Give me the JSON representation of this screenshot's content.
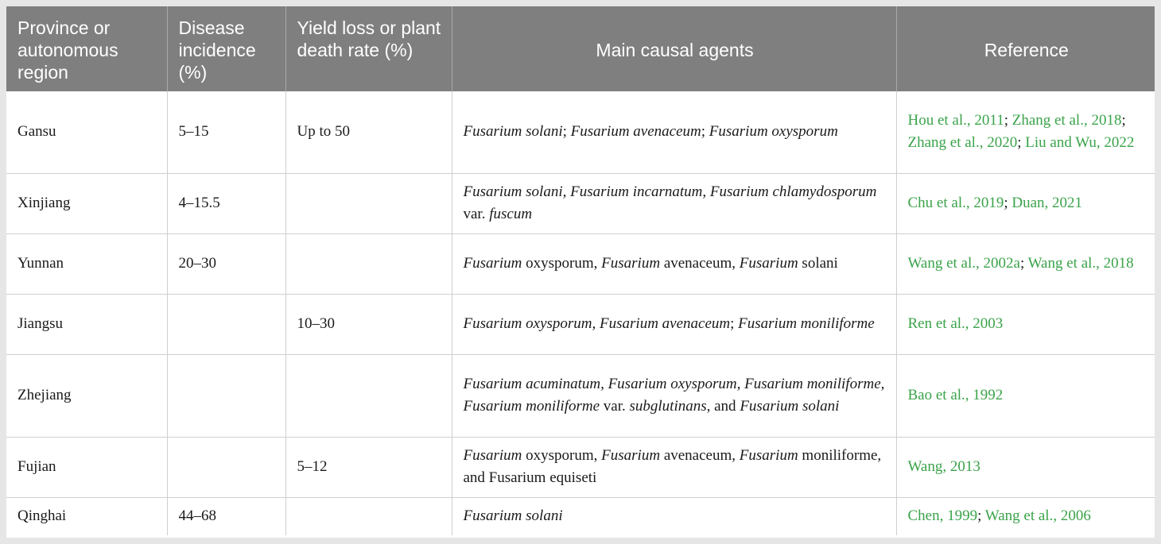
{
  "headers": [
    "Province or autonomous region",
    "Disease incidence (%)",
    "Yield loss or plant death rate (%)",
    "Main causal agents",
    "Reference"
  ],
  "rows": [
    {
      "province": "Gansu",
      "incidence": "5–15",
      "yield_loss": "Up to 50",
      "agents": [
        {
          "t": "Fusarium solani",
          "i": true
        },
        {
          "t": "; ",
          "i": false
        },
        {
          "t": "Fusarium avenaceum",
          "i": true
        },
        {
          "t": "; ",
          "i": false
        },
        {
          "t": "Fusarium oxysporum",
          "i": true
        }
      ],
      "refs": [
        "Hou et al., 2011",
        "Zhang et al., 2018",
        "Zhang et al., 2020",
        "Liu and Wu, 2022"
      ]
    },
    {
      "province": "Xinjiang",
      "incidence": "4–15.5",
      "yield_loss": "",
      "agents": [
        {
          "t": "Fusarium solani, Fusarium incarnatum, Fusarium chlamydosporum",
          "i": true
        },
        {
          "t": " var. ",
          "i": false
        },
        {
          "t": "fuscum",
          "i": true
        }
      ],
      "refs": [
        "Chu et al., 2019",
        "Duan, 2021"
      ]
    },
    {
      "province": "Yunnan",
      "incidence": "20–30",
      "yield_loss": "",
      "agents": [
        {
          "t": "Fusarium",
          "i": true
        },
        {
          "t": " oxysporum, ",
          "i": false
        },
        {
          "t": "Fusarium",
          "i": true
        },
        {
          "t": " avenaceum, ",
          "i": false
        },
        {
          "t": "Fusarium",
          "i": true
        },
        {
          "t": " solani",
          "i": false
        }
      ],
      "refs": [
        "Wang et al., 2002a",
        "Wang et al., 2018"
      ]
    },
    {
      "province": "Jiangsu",
      "incidence": "",
      "yield_loss": "10–30",
      "agents": [
        {
          "t": "Fusarium oxysporum, Fusarium avenaceum",
          "i": true
        },
        {
          "t": "; ",
          "i": false
        },
        {
          "t": "Fusarium moniliforme",
          "i": true
        }
      ],
      "refs": [
        "Ren et al., 2003"
      ]
    },
    {
      "province": "Zhejiang",
      "incidence": "",
      "yield_loss": "",
      "agents": [
        {
          "t": "Fusarium acuminatum, Fusarium oxysporum, Fusarium moniliforme, Fusarium moniliforme",
          "i": true
        },
        {
          "t": " var. ",
          "i": false
        },
        {
          "t": "subglutinans",
          "i": true
        },
        {
          "t": ", and ",
          "i": false
        },
        {
          "t": "Fusarium solani",
          "i": true
        }
      ],
      "refs": [
        "Bao et al., 1992"
      ]
    },
    {
      "province": "Fujian",
      "incidence": "",
      "yield_loss": "5–12",
      "agents": [
        {
          "t": "Fusarium",
          "i": true
        },
        {
          "t": " oxysporum, ",
          "i": false
        },
        {
          "t": "Fusarium",
          "i": true
        },
        {
          "t": " avenaceum, ",
          "i": false
        },
        {
          "t": "Fusarium",
          "i": true
        },
        {
          "t": " moniliforme, and Fusarium equiseti",
          "i": false
        }
      ],
      "refs": [
        "Wang, 2013"
      ]
    },
    {
      "province": "Qinghai",
      "incidence": "44–68",
      "yield_loss": "",
      "agents": [
        {
          "t": "Fusarium solani",
          "i": true
        }
      ],
      "refs": [
        "Chen, 1999",
        "Wang et al., 2006"
      ]
    }
  ],
  "colors": {
    "header_bg": "#7f7f7f",
    "header_text": "#ffffff",
    "reference_link": "#3aa34a",
    "grid": "#cfcfcf"
  }
}
